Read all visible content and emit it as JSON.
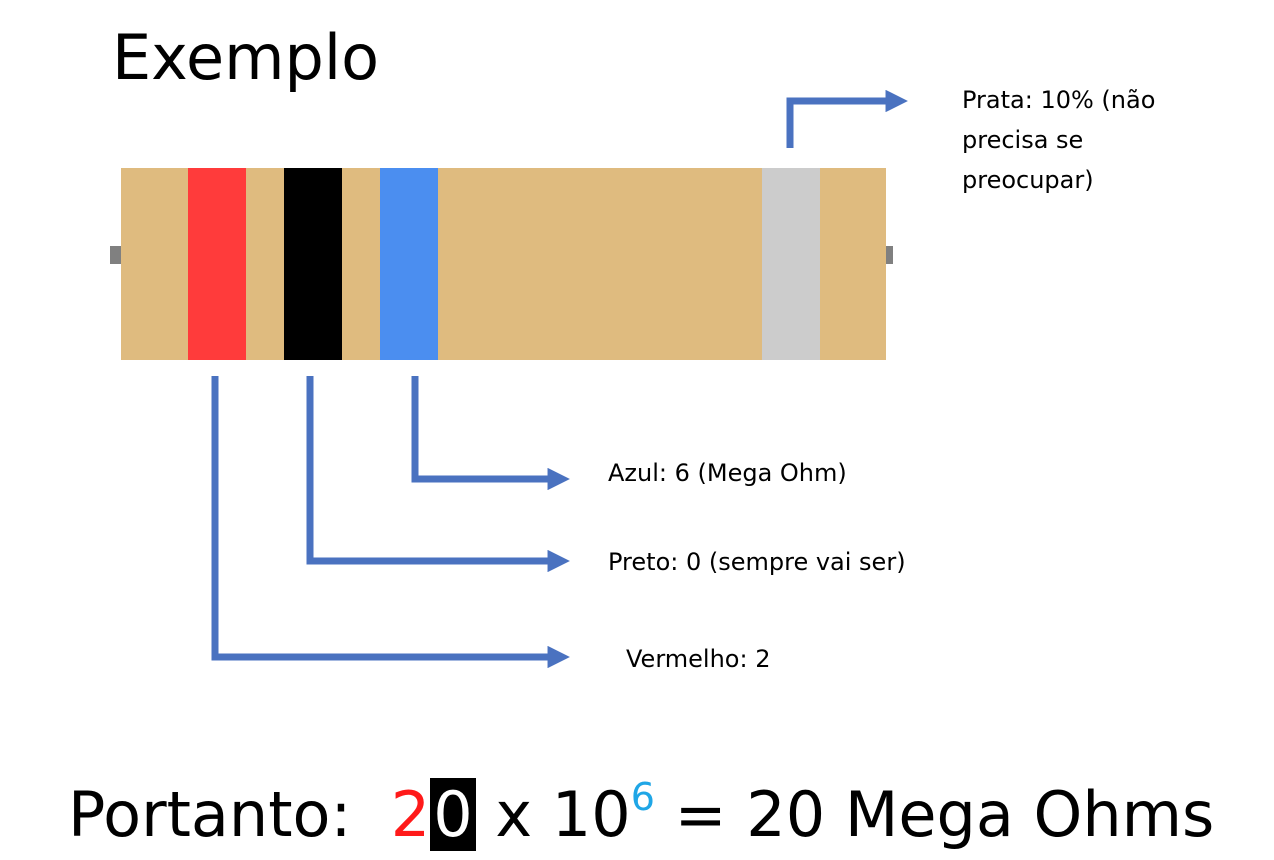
{
  "title": "Exemplo",
  "colors": {
    "body": "#dfbb7f",
    "lead": "#808080",
    "arrow": "#4a72c0",
    "band_red": "#ff3b3b",
    "band_black": "#000000",
    "band_blue": "#4b8ef0",
    "band_silver": "#cccccc"
  },
  "bands": [
    {
      "name": "Vermelho",
      "color": "#ff3b3b"
    },
    {
      "name": "Preto",
      "color": "#000000"
    },
    {
      "name": "Azul",
      "color": "#4b8ef0"
    },
    {
      "name": "Prata",
      "color": "#cccccc"
    }
  ],
  "labels": {
    "prata_line1": "Prata: 10% (não",
    "prata_line2": "precisa se",
    "prata_line3": "preocupar)",
    "azul": "Azul: 6 (Mega Ohm)",
    "preto": "Preto: 0 (sempre vai ser)",
    "vermelho": "Vermelho: 2"
  },
  "formula": {
    "prefix": "Portanto:",
    "digit1": "2",
    "digit2": "0",
    "times": "x 10",
    "exponent": "6",
    "result": "= 20 Mega Ohms"
  }
}
